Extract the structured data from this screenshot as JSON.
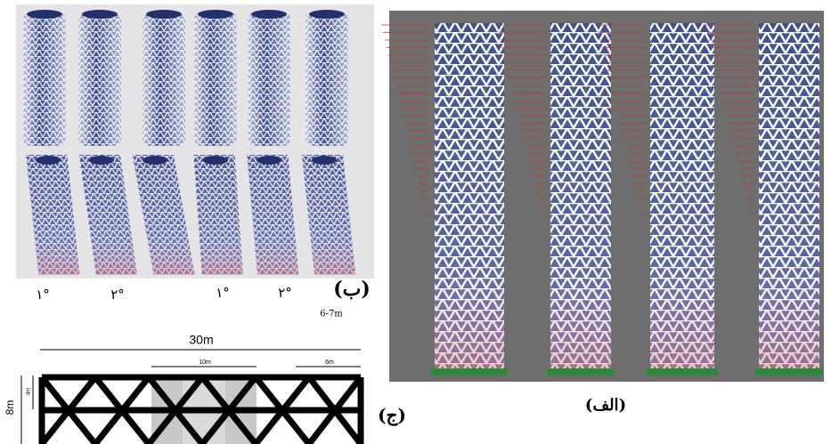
{
  "panel_b": {
    "label": "(ب)",
    "angle_labels": [
      "۱°",
      "۲°",
      "۱°",
      "۲°"
    ],
    "note": "6-7m"
  },
  "panel_a": {
    "label": "(الف)"
  },
  "panel_c": {
    "label": "(ج)",
    "total_width": "30m",
    "middle_width": "10m",
    "side_width": "6m",
    "height": "8m",
    "half_height": "4m"
  }
}
